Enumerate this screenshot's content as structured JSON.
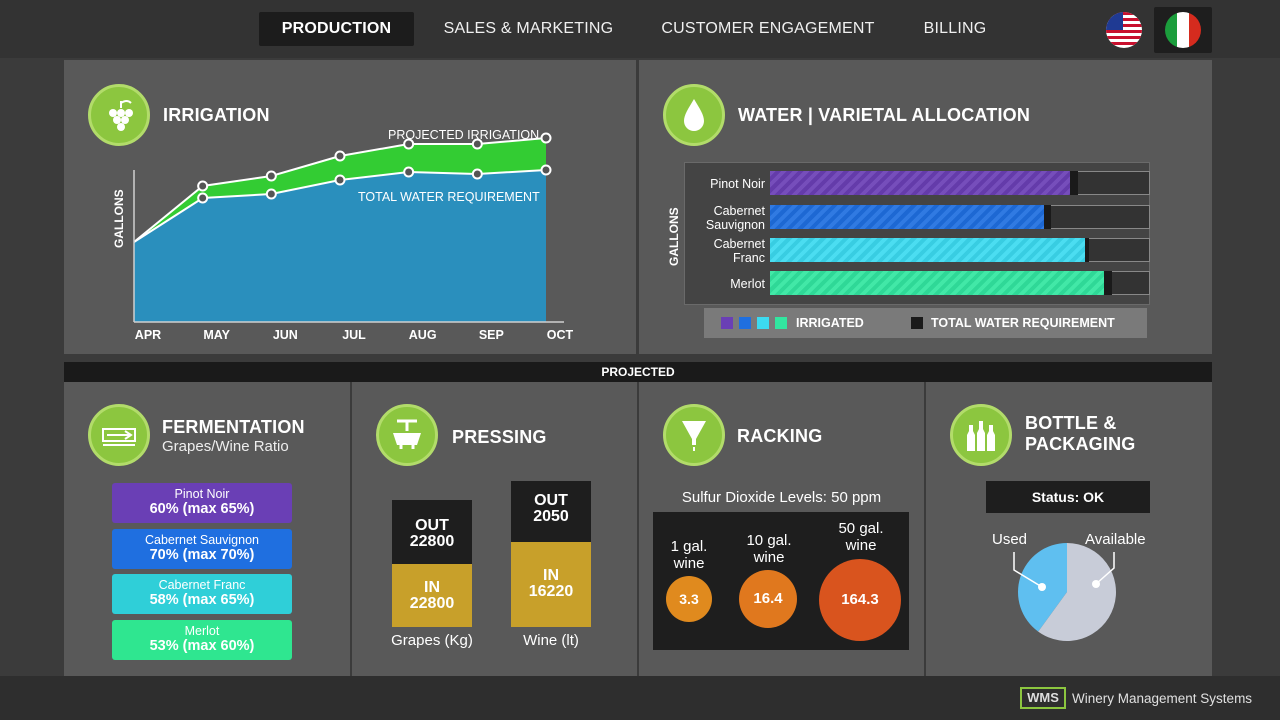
{
  "nav": {
    "tabs": [
      {
        "label": "PRODUCTION",
        "active": true
      },
      {
        "label": "SALES & MARKETING",
        "active": false
      },
      {
        "label": "CUSTOMER ENGAGEMENT",
        "active": false
      },
      {
        "label": "BILLING",
        "active": false
      }
    ]
  },
  "irrigation": {
    "title": "IRRIGATION",
    "ylabel": "GALLONS",
    "projected_label": "PROJECTED IRRIGATION",
    "total_label": "TOTAL WATER REQUIREMENT",
    "chart_data": {
      "type": "area",
      "categories": [
        "APR",
        "MAY",
        "JUN",
        "JUL",
        "AUG",
        "SEP",
        "OCT"
      ],
      "series": [
        {
          "name": "PROJECTED IRRIGATION",
          "values": [
            40,
            68,
            73,
            83,
            89,
            89,
            92
          ]
        },
        {
          "name": "TOTAL WATER REQUIREMENT",
          "values": [
            40,
            62,
            64,
            71,
            75,
            74,
            76
          ]
        }
      ],
      "ylim": [
        0,
        100
      ],
      "colors": {
        "projected": "#33cc33",
        "total": "#2a8fbd"
      }
    }
  },
  "water": {
    "title": "WATER  |  VARIETAL ALLOCATION",
    "ylabel": "GALLONS",
    "legend": {
      "irrigated": "IRRIGATED",
      "total": "TOTAL WATER REQUIREMENT"
    },
    "chart_data": {
      "type": "bar",
      "orientation": "horizontal",
      "categories": [
        "Pinot Noir",
        "Cabernet Sauvignon",
        "Cabernet Franc",
        "Merlot"
      ],
      "series": [
        {
          "name": "IRRIGATED",
          "values": [
            79,
            72,
            83,
            88
          ]
        },
        {
          "name": "TOTAL WATER REQUIREMENT",
          "values": [
            81,
            74,
            84,
            90
          ]
        }
      ],
      "xlim": [
        0,
        100
      ],
      "colors": [
        "#6a3fb5",
        "#1f6fe0",
        "#3cdaf0",
        "#32e6a0"
      ]
    }
  },
  "projected_label": "PROJECTED",
  "fermentation": {
    "title": "FERMENTATION",
    "subtitle": "Grapes/Wine Ratio",
    "items": [
      {
        "name": "Pinot Noir",
        "value": "60% (max 65%)",
        "color": "#6a3fb5"
      },
      {
        "name": "Cabernet Sauvignon",
        "value": "70% (max 70%)",
        "color": "#1f6fe0"
      },
      {
        "name": "Cabernet Franc",
        "value": "58% (max 65%)",
        "color": "#2fcfd8"
      },
      {
        "name": "Merlot",
        "value": "53% (max 60%)",
        "color": "#2fe690"
      }
    ]
  },
  "pressing": {
    "title": "PRESSING",
    "grapes": {
      "out_label": "OUT",
      "out_value": "22800",
      "in_label": "IN",
      "in_value": "22800",
      "caption": "Grapes (Kg)"
    },
    "wine": {
      "out_label": "OUT",
      "out_value": "2050",
      "in_label": "IN",
      "in_value": "16220",
      "caption": "Wine (lt)"
    }
  },
  "racking": {
    "title": "RACKING",
    "subtitle": "Sulfur Dioxide Levels: 50 ppm",
    "items": [
      {
        "label": "1 gal. wine",
        "value": "3.3"
      },
      {
        "label": "10 gal. wine",
        "value": "16.4"
      },
      {
        "label": "50 gal. wine",
        "value": "164.3"
      }
    ]
  },
  "bottle": {
    "title_line1": "BOTTLE &",
    "title_line2": "PACKAGING",
    "status": "Status: OK",
    "used_label": "Used",
    "available_label": "Available",
    "chart_data": {
      "type": "pie",
      "categories": [
        "Used",
        "Available"
      ],
      "values": [
        40,
        60
      ],
      "colors": [
        "#5fbff0",
        "#c8ccd8"
      ]
    }
  },
  "footer": {
    "logo": "WMS",
    "name": "Winery Management Systems"
  }
}
